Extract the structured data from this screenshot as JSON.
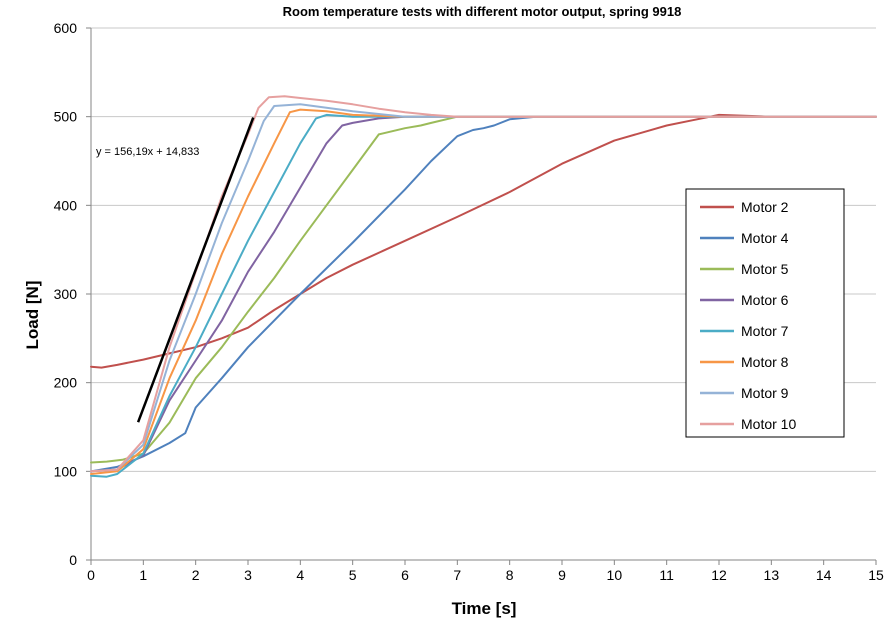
{
  "chart_data": {
    "type": "line",
    "title": "Room temperature tests with different motor output, spring 9918",
    "xlabel": "Time  [s]",
    "ylabel": "Load [N]",
    "xlim": [
      0,
      15
    ],
    "ylim": [
      0,
      600
    ],
    "xticks": [
      0,
      1,
      2,
      3,
      4,
      5,
      6,
      7,
      8,
      9,
      10,
      11,
      12,
      13,
      14,
      15
    ],
    "yticks": [
      0,
      100,
      200,
      300,
      400,
      500,
      600
    ],
    "grid": "horizontal",
    "legend": "right",
    "annotation": {
      "text": "y = 156,19x + 14,833",
      "trendline": {
        "x": [
          0.9,
          3.1
        ]
      }
    },
    "series": [
      {
        "name": "Motor 2",
        "color": "#c0504d",
        "points": [
          [
            0,
            218
          ],
          [
            0.2,
            217
          ],
          [
            0.5,
            220
          ],
          [
            1,
            226
          ],
          [
            1.5,
            233
          ],
          [
            2,
            240
          ],
          [
            2.5,
            250
          ],
          [
            3,
            262
          ],
          [
            3.5,
            282
          ],
          [
            4,
            300
          ],
          [
            4.5,
            318
          ],
          [
            5,
            333
          ],
          [
            6,
            360
          ],
          [
            7,
            387
          ],
          [
            8,
            415
          ],
          [
            9,
            447
          ],
          [
            10,
            473
          ],
          [
            11,
            490
          ],
          [
            11.5,
            496
          ],
          [
            12,
            502
          ],
          [
            13,
            500
          ],
          [
            14,
            500
          ],
          [
            15,
            500
          ]
        ]
      },
      {
        "name": "Motor 4",
        "color": "#4f81bd",
        "points": [
          [
            0,
            100
          ],
          [
            0.5,
            105
          ],
          [
            1,
            117
          ],
          [
            1.5,
            132
          ],
          [
            1.8,
            143
          ],
          [
            2,
            172
          ],
          [
            2.5,
            205
          ],
          [
            3,
            240
          ],
          [
            3.5,
            270
          ],
          [
            4,
            300
          ],
          [
            5,
            358
          ],
          [
            6,
            418
          ],
          [
            6.5,
            450
          ],
          [
            7,
            478
          ],
          [
            7.3,
            485
          ],
          [
            7.5,
            487
          ],
          [
            7.7,
            490
          ],
          [
            8,
            497
          ],
          [
            8.5,
            500
          ],
          [
            9,
            500
          ],
          [
            10,
            500
          ],
          [
            11,
            500
          ],
          [
            12,
            500
          ],
          [
            13,
            500
          ],
          [
            14,
            500
          ],
          [
            15,
            500
          ]
        ]
      },
      {
        "name": "Motor 5",
        "color": "#9bbb59",
        "points": [
          [
            0,
            110
          ],
          [
            0.3,
            111
          ],
          [
            0.6,
            113
          ],
          [
            1,
            120
          ],
          [
            1.5,
            155
          ],
          [
            2,
            205
          ],
          [
            2.5,
            240
          ],
          [
            3,
            280
          ],
          [
            3.5,
            318
          ],
          [
            4,
            360
          ],
          [
            4.5,
            400
          ],
          [
            5,
            440
          ],
          [
            5.5,
            480
          ],
          [
            6,
            487
          ],
          [
            6.3,
            490
          ],
          [
            6.5,
            493
          ],
          [
            7,
            500
          ],
          [
            8,
            500
          ],
          [
            9,
            500
          ],
          [
            10,
            500
          ],
          [
            11,
            500
          ],
          [
            12,
            500
          ],
          [
            13,
            500
          ],
          [
            14,
            500
          ],
          [
            15,
            500
          ]
        ]
      },
      {
        "name": "Motor 6",
        "color": "#8064a2",
        "points": [
          [
            0,
            100
          ],
          [
            0.5,
            102
          ],
          [
            1,
            118
          ],
          [
            1.5,
            180
          ],
          [
            2,
            225
          ],
          [
            2.5,
            270
          ],
          [
            3,
            325
          ],
          [
            3.5,
            370
          ],
          [
            4,
            420
          ],
          [
            4.5,
            470
          ],
          [
            4.8,
            490
          ],
          [
            5,
            493
          ],
          [
            5.5,
            498
          ],
          [
            6,
            500
          ],
          [
            7,
            500
          ],
          [
            8,
            500
          ],
          [
            9,
            500
          ],
          [
            10,
            500
          ],
          [
            11,
            500
          ],
          [
            12,
            500
          ],
          [
            13,
            500
          ],
          [
            14,
            500
          ],
          [
            15,
            500
          ]
        ]
      },
      {
        "name": "Motor 7",
        "color": "#4bacc6",
        "points": [
          [
            0,
            95
          ],
          [
            0.3,
            94
          ],
          [
            0.5,
            97
          ],
          [
            1,
            120
          ],
          [
            1.5,
            185
          ],
          [
            2,
            240
          ],
          [
            2.5,
            300
          ],
          [
            3,
            360
          ],
          [
            3.5,
            415
          ],
          [
            4,
            470
          ],
          [
            4.3,
            498
          ],
          [
            4.5,
            502
          ],
          [
            5,
            500
          ],
          [
            6,
            500
          ],
          [
            7,
            500
          ],
          [
            8,
            500
          ],
          [
            9,
            500
          ],
          [
            10,
            500
          ],
          [
            11,
            500
          ],
          [
            12,
            500
          ],
          [
            13,
            500
          ],
          [
            14,
            500
          ],
          [
            15,
            500
          ]
        ]
      },
      {
        "name": "Motor 8",
        "color": "#f79646",
        "points": [
          [
            0,
            97
          ],
          [
            0.5,
            100
          ],
          [
            1,
            125
          ],
          [
            1.5,
            205
          ],
          [
            2,
            270
          ],
          [
            2.5,
            345
          ],
          [
            3,
            410
          ],
          [
            3.5,
            470
          ],
          [
            3.8,
            505
          ],
          [
            4,
            508
          ],
          [
            4.5,
            506
          ],
          [
            5,
            502
          ],
          [
            6,
            500
          ],
          [
            7,
            500
          ],
          [
            8,
            500
          ],
          [
            9,
            500
          ],
          [
            10,
            500
          ],
          [
            11,
            500
          ],
          [
            12,
            500
          ],
          [
            13,
            500
          ],
          [
            14,
            500
          ],
          [
            15,
            500
          ]
        ]
      },
      {
        "name": "Motor 9",
        "color": "#95b3d7",
        "points": [
          [
            0,
            100
          ],
          [
            0.5,
            102
          ],
          [
            1,
            130
          ],
          [
            1.5,
            225
          ],
          [
            2,
            300
          ],
          [
            2.5,
            380
          ],
          [
            3,
            450
          ],
          [
            3.3,
            495
          ],
          [
            3.5,
            512
          ],
          [
            4,
            514
          ],
          [
            4.5,
            510
          ],
          [
            5,
            506
          ],
          [
            5.5,
            503
          ],
          [
            6,
            500
          ],
          [
            7,
            500
          ],
          [
            8,
            500
          ],
          [
            9,
            500
          ],
          [
            10,
            500
          ],
          [
            11,
            500
          ],
          [
            12,
            500
          ],
          [
            13,
            500
          ],
          [
            14,
            500
          ],
          [
            15,
            500
          ]
        ]
      },
      {
        "name": "Motor 10",
        "color": "#e6a09f",
        "points": [
          [
            0,
            100
          ],
          [
            0.5,
            102
          ],
          [
            1,
            135
          ],
          [
            1.5,
            240
          ],
          [
            2,
            325
          ],
          [
            2.5,
            410
          ],
          [
            3,
            480
          ],
          [
            3.2,
            510
          ],
          [
            3.4,
            522
          ],
          [
            3.7,
            523
          ],
          [
            4,
            521
          ],
          [
            4.5,
            518
          ],
          [
            5,
            514
          ],
          [
            5.5,
            509
          ],
          [
            6,
            505
          ],
          [
            6.5,
            502
          ],
          [
            7,
            500
          ],
          [
            8,
            500
          ],
          [
            9,
            500
          ],
          [
            10,
            500
          ],
          [
            11,
            500
          ],
          [
            12,
            500
          ],
          [
            13,
            500
          ],
          [
            14,
            500
          ],
          [
            15,
            500
          ]
        ]
      }
    ]
  }
}
